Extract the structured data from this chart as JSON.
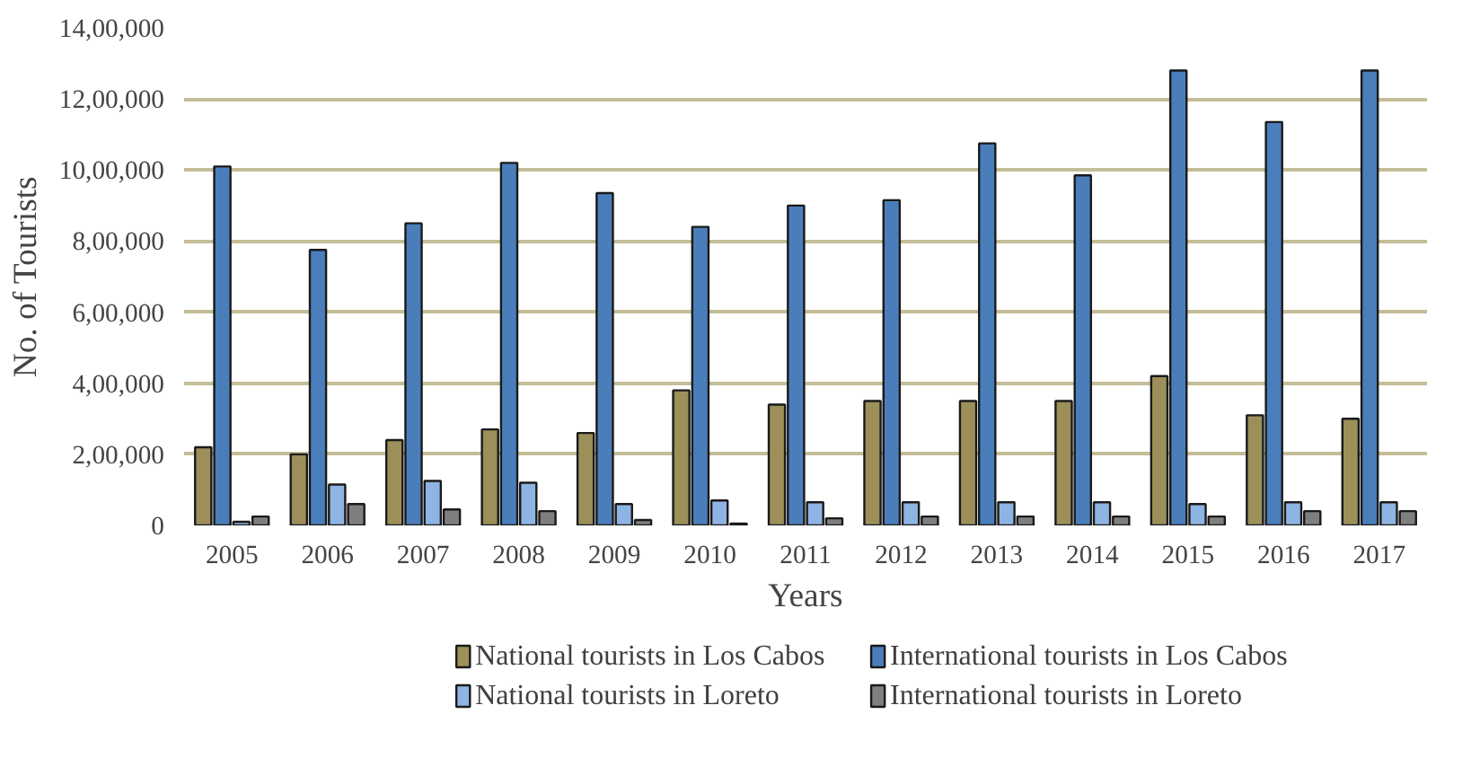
{
  "chart_data": {
    "type": "bar",
    "xlabel": "Years",
    "ylabel": "No. of Tourists",
    "categories": [
      "2005",
      "2006",
      "2007",
      "2008",
      "2009",
      "2010",
      "2011",
      "2012",
      "2013",
      "2014",
      "2015",
      "2016",
      "2017"
    ],
    "series": [
      {
        "name": "National tourists in Los Cabos",
        "color": "#9c8f5a",
        "values": [
          220000,
          200000,
          240000,
          270000,
          260000,
          380000,
          340000,
          350000,
          350000,
          350000,
          420000,
          310000,
          300000
        ]
      },
      {
        "name": "International tourists in Los Cabos",
        "color": "#4a7ebb",
        "values": [
          1010000,
          775000,
          850000,
          1020000,
          935000,
          840000,
          900000,
          915000,
          1075000,
          985000,
          1280000,
          1135000,
          1280000
        ]
      },
      {
        "name": "National tourists in Loreto",
        "color": "#8eb4e3",
        "values": [
          10000,
          115000,
          125000,
          120000,
          60000,
          70000,
          65000,
          65000,
          65000,
          65000,
          60000,
          65000,
          65000
        ]
      },
      {
        "name": "International tourists in Loreto",
        "color": "#7f7f7f",
        "values": [
          25000,
          60000,
          45000,
          40000,
          15000,
          5000,
          20000,
          25000,
          25000,
          25000,
          25000,
          40000,
          40000
        ]
      }
    ],
    "ylim": [
      0,
      1400000
    ],
    "yticks": [
      {
        "value": 0,
        "label": "0"
      },
      {
        "value": 200000,
        "label": "2,00,000"
      },
      {
        "value": 400000,
        "label": "4,00,000"
      },
      {
        "value": 600000,
        "label": "6,00,000"
      },
      {
        "value": 800000,
        "label": "8,00,000"
      },
      {
        "value": 1000000,
        "label": "10,00,000"
      },
      {
        "value": 1200000,
        "label": "12,00,000"
      },
      {
        "value": 1400000,
        "label": "14,00,000"
      }
    ],
    "grid": "y",
    "legend": "bottom"
  }
}
